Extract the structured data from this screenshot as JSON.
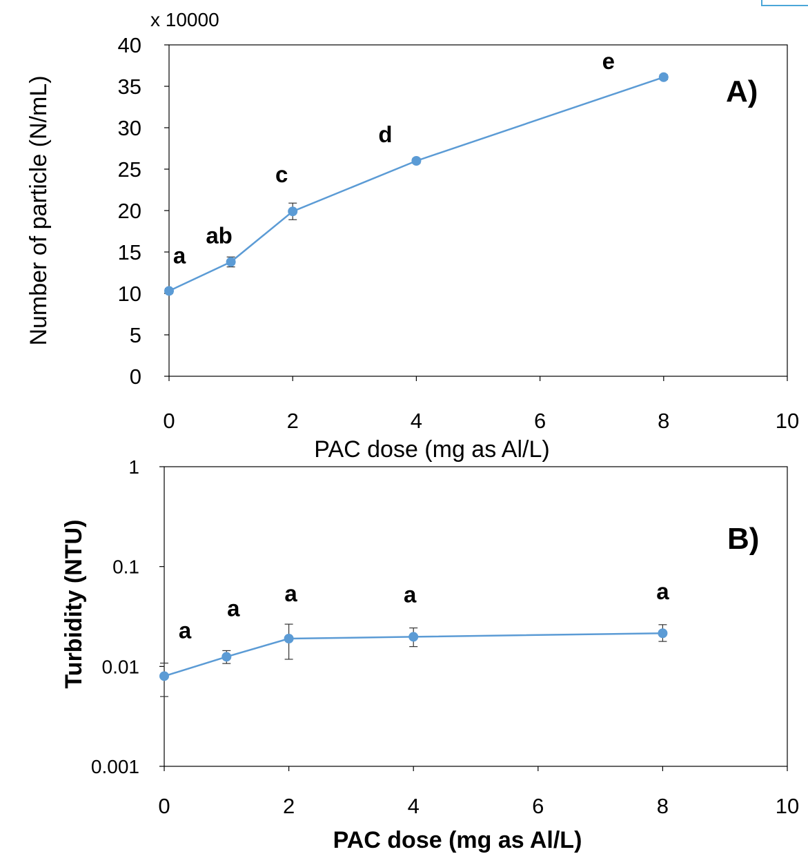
{
  "colors": {
    "series": "#5b9bd5",
    "error_bar": "#333333",
    "axis": "#000000"
  },
  "chart_data": [
    {
      "type": "line",
      "panel_label": "A)",
      "xlabel": "PAC dose (mg as Al/L)",
      "ylabel": "Number of particle (N/mL)",
      "y_multiplier_label": "x 10000",
      "xlim": [
        0,
        10
      ],
      "ylim": [
        0,
        40
      ],
      "x_ticks": [
        0,
        2,
        4,
        6,
        8,
        10
      ],
      "y_ticks": [
        0,
        5,
        10,
        15,
        20,
        25,
        30,
        35,
        40
      ],
      "x_tick_labels": [
        "0",
        "2",
        "4",
        "6",
        "8",
        "10"
      ],
      "y_tick_labels": [
        "0",
        "5",
        "10",
        "15",
        "20",
        "25",
        "30",
        "35",
        "40"
      ],
      "y_scale": "linear",
      "grid": false,
      "series": [
        {
          "x": [
            0,
            1,
            2,
            4,
            8
          ],
          "y": [
            10.3,
            13.8,
            19.9,
            26.0,
            36.1
          ],
          "error": [
            0.3,
            0.6,
            1.0,
            0.3,
            0.3
          ],
          "letters": [
            "a",
            "ab",
            "c",
            "d",
            "e"
          ]
        }
      ]
    },
    {
      "type": "line",
      "panel_label": "B)",
      "xlabel": "PAC dose (mg as Al/L)",
      "ylabel": "Turbidity (NTU)",
      "xlim": [
        0,
        10
      ],
      "ylim": [
        0.001,
        1
      ],
      "x_ticks": [
        0,
        2,
        4,
        6,
        8,
        10
      ],
      "y_ticks": [
        0.001,
        0.01,
        0.1,
        1
      ],
      "x_tick_labels": [
        "0",
        "2",
        "4",
        "6",
        "8",
        "10"
      ],
      "y_tick_labels": [
        "0.001",
        "0.01",
        "0.1",
        "1"
      ],
      "y_scale": "log",
      "grid": false,
      "series": [
        {
          "x": [
            0,
            1,
            2,
            4,
            8
          ],
          "y": [
            0.008,
            0.0125,
            0.019,
            0.0198,
            0.0215
          ],
          "err_low": [
            0.005,
            0.0107,
            0.0118,
            0.0158,
            0.0178
          ],
          "err_high": [
            0.0108,
            0.0144,
            0.0265,
            0.0243,
            0.0262
          ],
          "letters": [
            "a",
            "a",
            "a",
            "a",
            "a"
          ]
        }
      ]
    }
  ]
}
